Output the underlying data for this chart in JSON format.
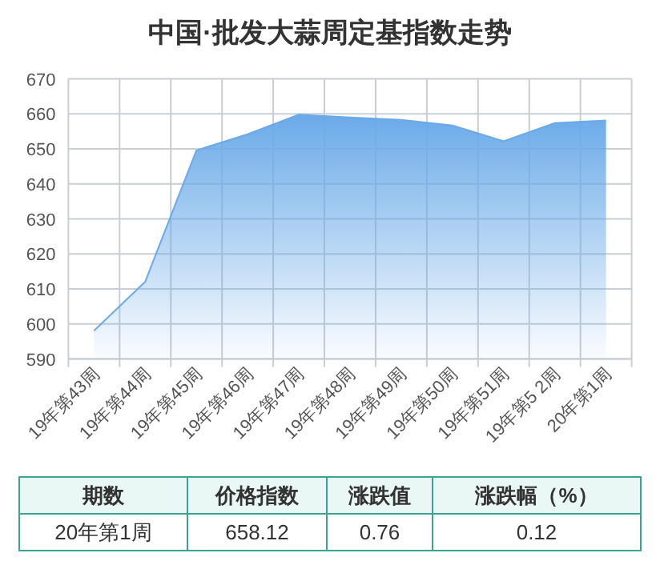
{
  "chart_data": {
    "type": "area",
    "title": "中国·批发大蒜周定基指数走势",
    "categories": [
      "19年第43周",
      "19年第44周",
      "19年第45周",
      "19年第46周",
      "19年第47周",
      "19年第48周",
      "19年第49周",
      "19年第50周",
      "19年第51周",
      "19年第5 2周",
      "20年第1周"
    ],
    "series": [
      {
        "color": "#6aaae8",
        "values": [
          598.1,
          612.1,
          649.6,
          654.2,
          659.8,
          659.0,
          658.3,
          656.7,
          652.2,
          657.4,
          658.12
        ]
      }
    ],
    "ylim": [
      590,
      670
    ],
    "yticks": [
      590,
      600,
      610,
      620,
      630,
      640,
      650,
      660,
      670
    ],
    "grid": true,
    "annotations": [
      "期数",
      "价格指数",
      "涨跌值",
      "涨跌幅（%）",
      "20年第1周",
      "658.12",
      "0.76",
      "0.12"
    ]
  }
}
